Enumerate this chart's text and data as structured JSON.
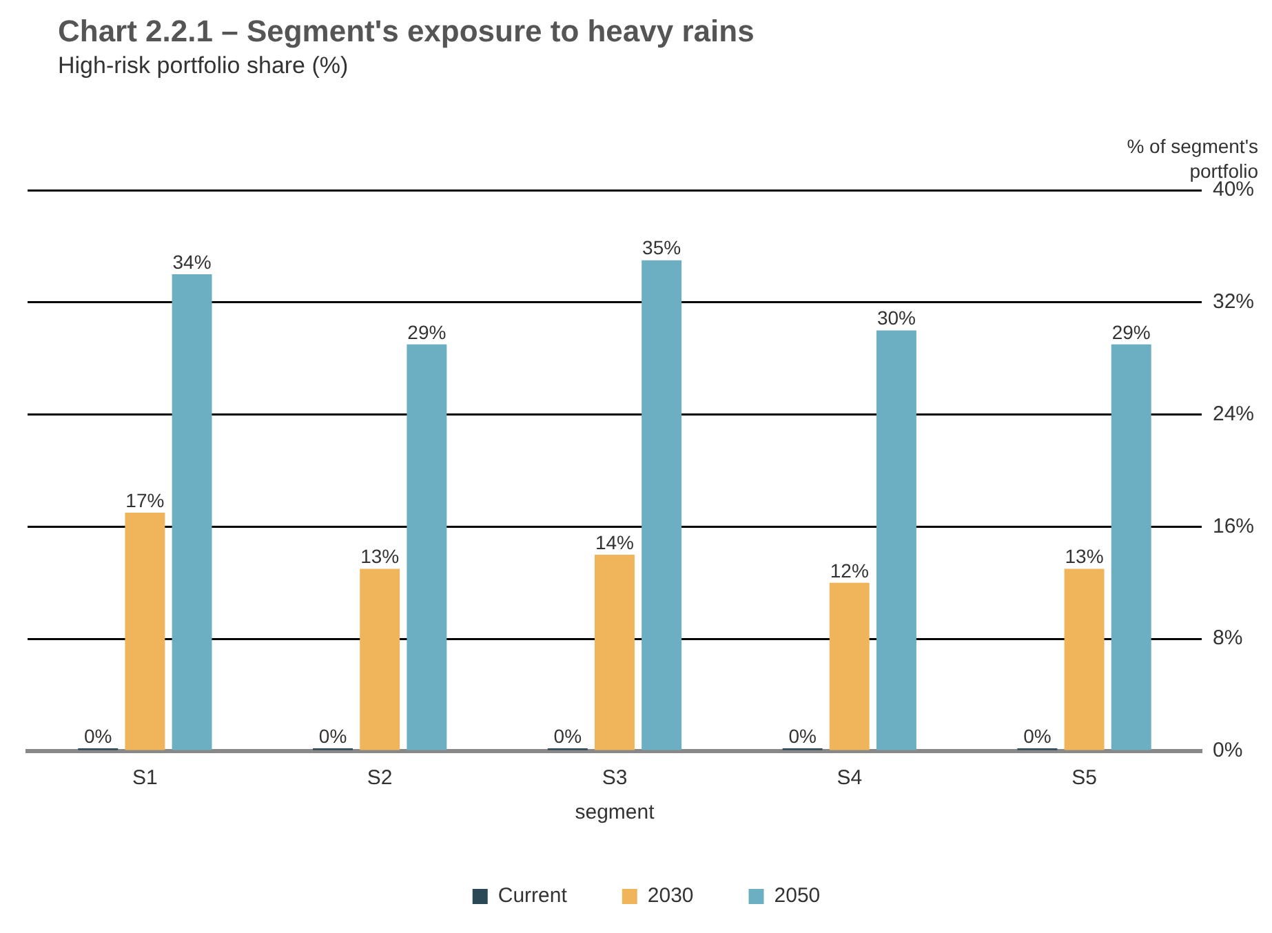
{
  "chart_data": {
    "type": "bar",
    "title": "Chart 2.2.1 – Segment's exposure to heavy rains",
    "subtitle": "High-risk portfolio share (%)",
    "xlabel": "segment",
    "ylabel": "% of segment's portfolio",
    "categories": [
      "S1",
      "S2",
      "S3",
      "S4",
      "S5"
    ],
    "series": [
      {
        "name": "Current",
        "color": "#2b4856",
        "values": [
          0,
          0,
          0,
          0,
          0
        ],
        "value_labels": [
          "0%",
          "0%",
          "0%",
          "0%",
          "0%"
        ]
      },
      {
        "name": "2030",
        "color": "#f0b55a",
        "values": [
          17,
          13,
          14,
          12,
          13
        ],
        "value_labels": [
          "17%",
          "13%",
          "14%",
          "12%",
          "13%"
        ]
      },
      {
        "name": "2050",
        "color": "#6cafc2",
        "values": [
          34,
          29,
          35,
          30,
          29
        ],
        "value_labels": [
          "34%",
          "29%",
          "35%",
          "30%",
          "29%"
        ]
      }
    ],
    "ylim": [
      0,
      40
    ],
    "yticks": [
      {
        "value": 0,
        "label": "0%"
      },
      {
        "value": 8,
        "label": "8%"
      },
      {
        "value": 16,
        "label": "16%"
      },
      {
        "value": 24,
        "label": "24%"
      },
      {
        "value": 32,
        "label": "32%"
      },
      {
        "value": 40,
        "label": "40%"
      }
    ],
    "grid": "y",
    "legend": "bottom"
  }
}
